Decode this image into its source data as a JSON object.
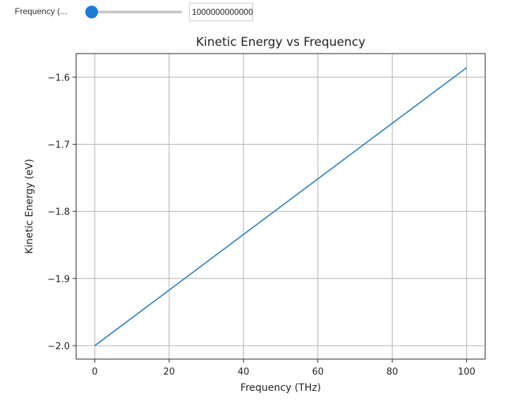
{
  "widget": {
    "label": "Frequency (...",
    "value_text": "1000000000000",
    "slider_fraction": 0.0
  },
  "colors": {
    "series": "#3a86c0",
    "slider_thumb": "#1e7bd4"
  },
  "chart_data": {
    "type": "line",
    "title": "Kinetic Energy vs Frequency",
    "xlabel": "Frequency (THz)",
    "ylabel": "Kinetic Energy (eV)",
    "xlim": [
      -5,
      105
    ],
    "ylim": [
      -2.02,
      -1.565
    ],
    "xticks": [
      0,
      20,
      40,
      60,
      80,
      100
    ],
    "xtick_labels": [
      "0",
      "20",
      "40",
      "60",
      "80",
      "100"
    ],
    "yticks": [
      -2.0,
      -1.9,
      -1.8,
      -1.7,
      -1.6
    ],
    "ytick_labels": [
      "−2.0",
      "−1.9",
      "−1.8",
      "−1.7",
      "−1.6"
    ],
    "grid": true,
    "series": [
      {
        "x": [
          0,
          100
        ],
        "y": [
          -2.0,
          -1.586
        ]
      }
    ]
  }
}
